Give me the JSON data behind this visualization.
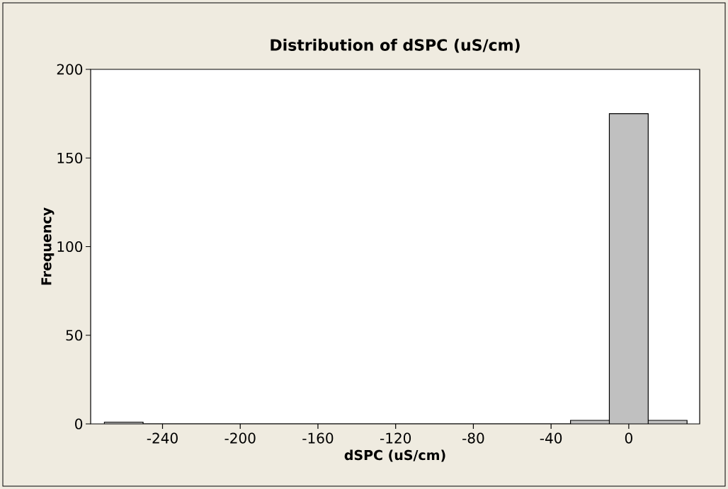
{
  "chart_data": {
    "type": "histogram",
    "title": "Distribution of dSPC (uS/cm)",
    "xlabel": "dSPC (uS/cm)",
    "ylabel": "Frequency",
    "color": "#c0c0c0",
    "bins": [
      -270,
      -250,
      -230,
      -210,
      -190,
      -170,
      -150,
      -130,
      -110,
      -90,
      -70,
      -50,
      -30,
      -10,
      10,
      30
    ],
    "values": [
      1,
      0,
      0,
      0,
      0,
      0,
      0,
      0,
      0,
      0,
      0,
      0,
      2,
      175,
      2
    ],
    "xlim": [
      -277,
      36.5
    ],
    "ylim": [
      0,
      200
    ],
    "xticks": [
      -240,
      -200,
      -160,
      -120,
      -80,
      -40,
      0
    ],
    "yticks": [
      0,
      50,
      100,
      150,
      200
    ]
  }
}
